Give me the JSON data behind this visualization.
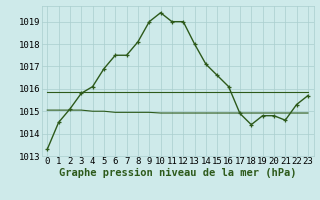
{
  "title": "Graphe pression niveau de la mer (hPa)",
  "x_values": [
    0,
    1,
    2,
    3,
    4,
    5,
    6,
    7,
    8,
    9,
    10,
    11,
    12,
    13,
    14,
    15,
    16,
    17,
    18,
    19,
    20,
    21,
    22,
    23
  ],
  "line1": [
    1013.3,
    1014.5,
    1015.1,
    1015.8,
    1016.1,
    1016.9,
    1017.5,
    1017.5,
    1018.1,
    1019.0,
    1019.4,
    1019.0,
    1019.0,
    1018.0,
    1017.1,
    1016.6,
    1016.1,
    1014.9,
    1014.4,
    1014.8,
    1014.8,
    1014.6,
    1015.3,
    1015.7
  ],
  "mean_line": [
    1015.85,
    1015.85,
    1015.85,
    1015.85,
    1015.85,
    1015.85,
    1015.85,
    1015.85,
    1015.85,
    1015.85,
    1015.85,
    1015.85,
    1015.85,
    1015.85,
    1015.85,
    1015.85,
    1015.85,
    1015.85,
    1015.85,
    1015.85,
    1015.85,
    1015.85,
    1015.85,
    1015.85
  ],
  "flat_line": [
    1015.05,
    1015.05,
    1015.05,
    1015.05,
    1015.0,
    1015.0,
    1014.95,
    1014.95,
    1014.95,
    1014.95,
    1014.92,
    1014.92,
    1014.92,
    1014.92,
    1014.92,
    1014.92,
    1014.92,
    1014.92,
    1014.92,
    1014.92,
    1014.92,
    1014.92,
    1014.92,
    1014.92
  ],
  "ylim": [
    1013.0,
    1019.7
  ],
  "yticks": [
    1013,
    1014,
    1015,
    1016,
    1017,
    1018,
    1019
  ],
  "xticks": [
    0,
    1,
    2,
    3,
    4,
    5,
    6,
    7,
    8,
    9,
    10,
    11,
    12,
    13,
    14,
    15,
    16,
    17,
    18,
    19,
    20,
    21,
    22,
    23
  ],
  "line_color": "#2d5a1b",
  "bg_color": "#ceeaea",
  "grid_color": "#aacece",
  "title_fontsize": 7.5,
  "tick_fontsize": 6.5
}
